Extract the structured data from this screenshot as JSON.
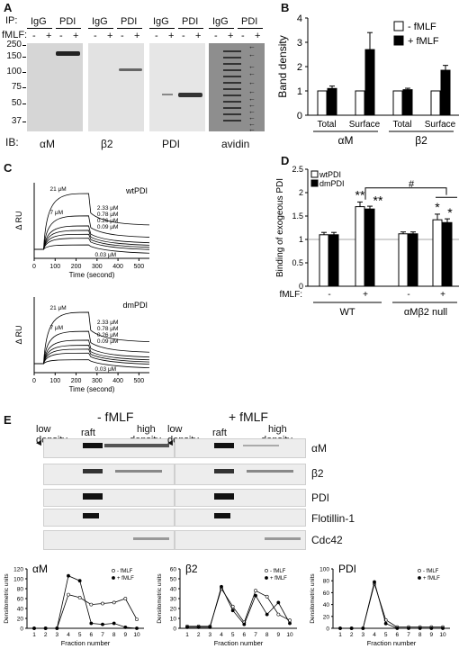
{
  "panels": {
    "A": "A",
    "B": "B",
    "C": "C",
    "D": "D",
    "E": "E"
  },
  "panelA": {
    "ip_label": "IP:",
    "fmlf_label": "fMLF:",
    "ib_label": "IB:",
    "groups": [
      {
        "igg": "IgG",
        "pdi": "PDI",
        "ib": "αM"
      },
      {
        "igg": "IgG",
        "pdi": "PDI",
        "ib": "β2"
      },
      {
        "igg": "IgG",
        "pdi": "PDI",
        "ib": "PDI"
      },
      {
        "igg": "IgG",
        "pdi": "PDI",
        "ib": "avidin"
      }
    ],
    "signs": [
      "-",
      "+",
      "-",
      "+"
    ],
    "mw": [
      "250",
      "150",
      "100",
      "75",
      "50",
      "37"
    ]
  },
  "chart_data": [
    {
      "type": "bar",
      "panel": "B",
      "categories": [
        "Total",
        "Surface",
        "Total",
        "Surface"
      ],
      "groups": [
        "αM",
        "β2"
      ],
      "ylabel": "Band density",
      "ylim": [
        0,
        4
      ],
      "yticks": [
        "0",
        "1",
        "2",
        "3",
        "4"
      ],
      "legend": "top-right",
      "series": [
        {
          "name": "- fMLF",
          "color": "#ffffff",
          "values": [
            1,
            1,
            1,
            1
          ]
        },
        {
          "name": "+ fMLF",
          "color": "#000000",
          "values": [
            1.1,
            2.7,
            1.05,
            1.85
          ],
          "errors": [
            0.1,
            0.7,
            0.06,
            0.2
          ]
        }
      ]
    },
    {
      "type": "line",
      "panel": "C-top",
      "title": "wtPDI",
      "ylabel": "Δ RU",
      "xlabel": "Time (second)",
      "xticks": [
        "0",
        "100",
        "200",
        "300",
        "400",
        "500"
      ],
      "series": [
        {
          "name": "21 μM",
          "plateau": 1.0
        },
        {
          "name": "7 μM",
          "plateau": 0.6
        },
        {
          "name": "2.33 μM",
          "plateau": 0.42
        },
        {
          "name": "0.78 μM",
          "plateau": 0.34
        },
        {
          "name": "0.26 μM",
          "plateau": 0.27
        },
        {
          "name": "0.09 μM",
          "plateau": 0.2
        },
        {
          "name": "0.03 μM",
          "plateau": 0.08
        }
      ]
    },
    {
      "type": "line",
      "panel": "C-bottom",
      "title": "dmPDI",
      "ylabel": "Δ RU",
      "xlabel": "Time (second)",
      "xticks": [
        "0",
        "100",
        "200",
        "300",
        "400",
        "500"
      ],
      "series": [
        {
          "name": "21 μM",
          "plateau": 0.92
        },
        {
          "name": "7 μM",
          "plateau": 0.58
        },
        {
          "name": "2.33 μM",
          "plateau": 0.42
        },
        {
          "name": "0.78 μM",
          "plateau": 0.33
        },
        {
          "name": "0.26 μM",
          "plateau": 0.26
        },
        {
          "name": "0.09 μM",
          "plateau": 0.19
        },
        {
          "name": "0.03 μM",
          "plateau": 0.07
        }
      ]
    },
    {
      "type": "bar",
      "panel": "D",
      "ylabel": "Binding of exogeous PDI",
      "ylim": [
        0,
        2.5
      ],
      "yticks": [
        "0",
        "0.5",
        "1",
        "1.5",
        "2",
        "2.5"
      ],
      "fmlf_label": "fMLF:",
      "fmlf_signs": [
        "-",
        "+",
        "-",
        "+"
      ],
      "group_labels": [
        "WT",
        "αMβ2 null"
      ],
      "legend": "top-left",
      "series": [
        {
          "name": "wtPDI",
          "color": "#ffffff",
          "values": [
            1.1,
            1.7,
            1.12,
            1.42
          ],
          "errors": [
            0.05,
            0.1,
            0.04,
            0.12
          ]
        },
        {
          "name": "dmPDI",
          "color": "#000000",
          "values": [
            1.1,
            1.65,
            1.12,
            1.36
          ],
          "errors": [
            0.05,
            0.06,
            0.04,
            0.08
          ]
        }
      ],
      "annotations": [
        "**",
        "**",
        "*",
        "*",
        "#"
      ]
    },
    {
      "type": "line",
      "panel": "E-αM",
      "title": "αM",
      "xlabel": "Fraction number",
      "ylabel": "Densitometric units",
      "x": [
        1,
        2,
        3,
        4,
        5,
        6,
        7,
        8,
        9,
        10
      ],
      "ylim": [
        0,
        120
      ],
      "yticks": [
        "0",
        "20",
        "40",
        "60",
        "80",
        "100",
        "120"
      ],
      "series": [
        {
          "name": "- fMLF",
          "marker": "open",
          "values": [
            0,
            0,
            0,
            68,
            62,
            48,
            50,
            52,
            60,
            18
          ]
        },
        {
          "name": "+ fMLF",
          "marker": "filled",
          "values": [
            0,
            0,
            0,
            106,
            96,
            10,
            8,
            10,
            2,
            0
          ]
        }
      ]
    },
    {
      "type": "line",
      "panel": "E-β2",
      "title": "β2",
      "xlabel": "Fraction number",
      "ylabel": "Densitometric units",
      "x": [
        1,
        2,
        3,
        4,
        5,
        6,
        7,
        8,
        9,
        10
      ],
      "ylim": [
        0,
        60
      ],
      "yticks": [
        "0",
        "10",
        "20",
        "30",
        "40",
        "50",
        "60"
      ],
      "series": [
        {
          "name": "- fMLF",
          "marker": "open",
          "values": [
            2,
            2,
            2,
            40,
            22,
            6,
            38,
            32,
            14,
            8
          ]
        },
        {
          "name": "+ fMLF",
          "marker": "filled",
          "values": [
            1,
            1,
            1,
            42,
            18,
            4,
            33,
            14,
            26,
            5
          ]
        }
      ]
    },
    {
      "type": "line",
      "panel": "E-PDI",
      "title": "PDI",
      "xlabel": "Fraction number",
      "ylabel": "Densitometric units",
      "x": [
        1,
        2,
        3,
        4,
        5,
        6,
        7,
        8,
        9,
        10
      ],
      "ylim": [
        0,
        100
      ],
      "yticks": [
        "0",
        "20",
        "40",
        "60",
        "80",
        "100"
      ],
      "series": [
        {
          "name": "- fMLF",
          "marker": "open",
          "values": [
            0,
            0,
            0,
            75,
            14,
            2,
            2,
            2,
            2,
            2
          ]
        },
        {
          "name": "+ fMLF",
          "marker": "filled",
          "values": [
            0,
            0,
            0,
            78,
            8,
            0,
            0,
            0,
            0,
            0
          ]
        }
      ]
    }
  ],
  "panelE": {
    "minus_title": "- fMLF",
    "plus_title": "+ fMLF",
    "low": "low",
    "low2": "density",
    "raft": "raft",
    "high": "high",
    "high2": "density",
    "fractions": [
      "1",
      "2",
      "3",
      "4",
      "5",
      "6",
      "7",
      "8",
      "9",
      "10"
    ],
    "blot_labels": [
      "αM",
      "β2",
      "PDI",
      "Flotillin-1",
      "Cdc42"
    ]
  }
}
